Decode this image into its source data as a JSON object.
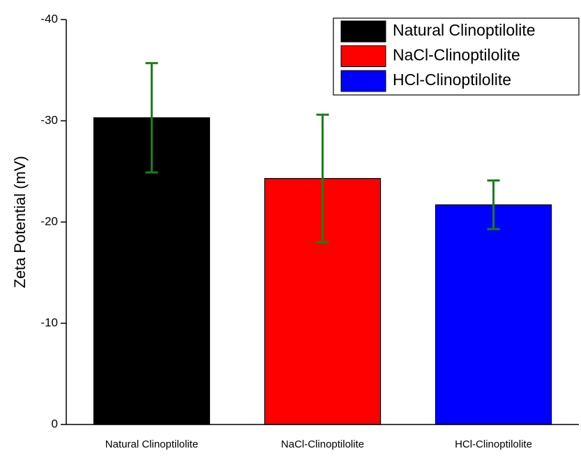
{
  "chart_data": {
    "type": "bar",
    "y_label": "Zeta Potential (mV)",
    "categories": [
      "Natural Clinoptilolite",
      "NaCl-Clinoptilolite",
      "HCl-Clinoptilolite"
    ],
    "values": [
      -30.3,
      -24.3,
      -21.7
    ],
    "errors": [
      5.4,
      6.3,
      2.4
    ],
    "colors": [
      "#000000",
      "#ff0000",
      "#0000ff"
    ],
    "error_color": "#1a7f1a",
    "ylim": [
      0,
      -40
    ],
    "yticks": [
      0,
      -10,
      -20,
      -30,
      -40
    ],
    "legend": "upper right"
  }
}
